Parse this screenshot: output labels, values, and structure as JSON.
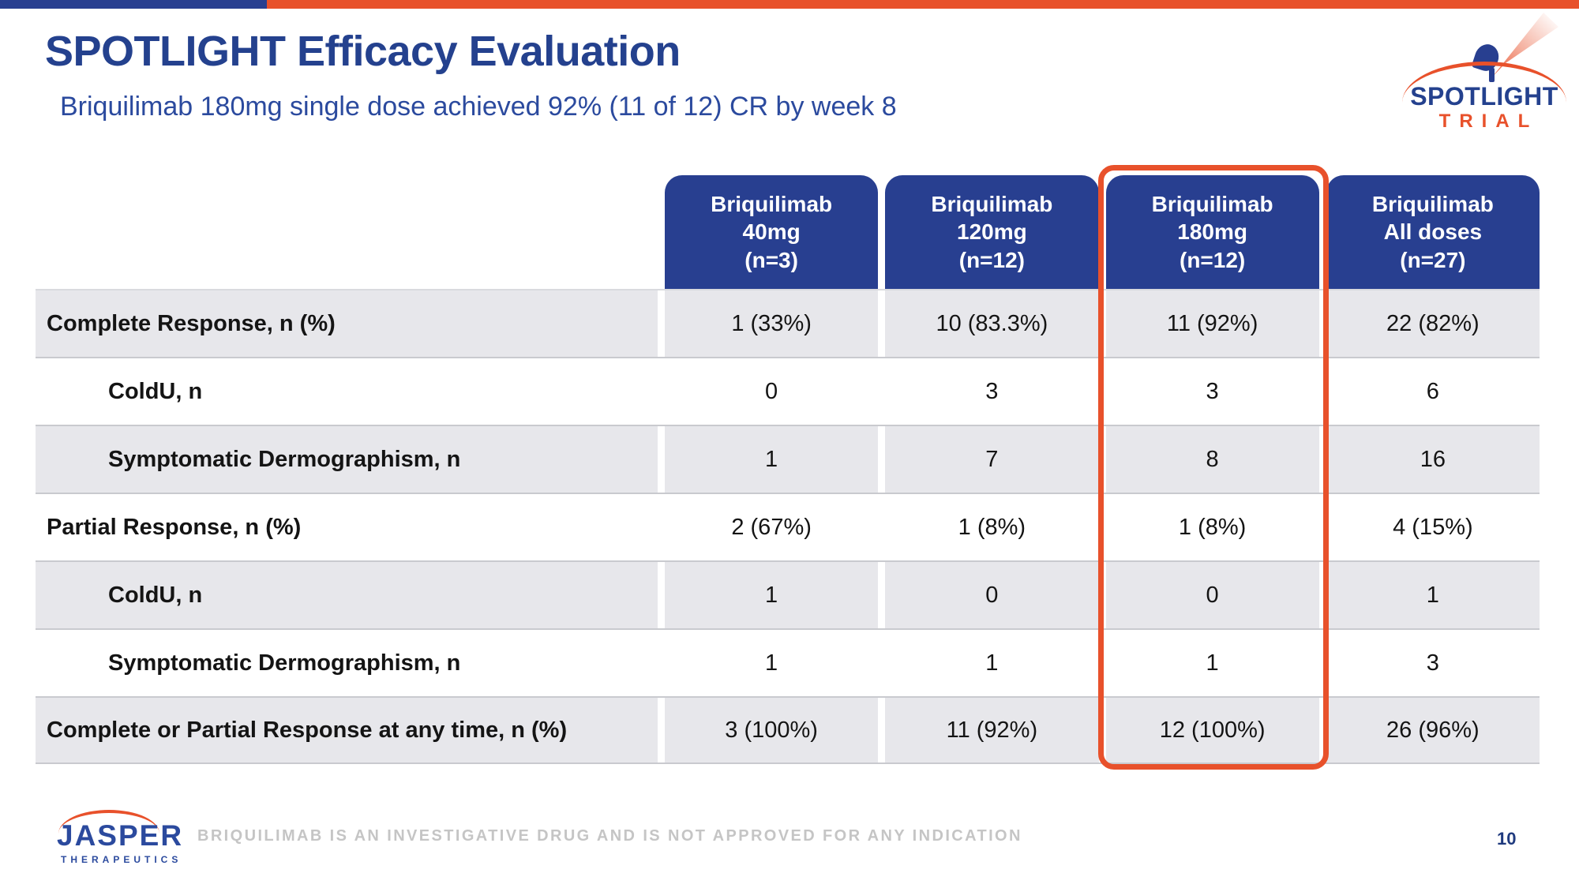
{
  "slide": {
    "title": "SPOTLIGHT Efficacy Evaluation",
    "subtitle": "Briquilimab 180mg single dose achieved 92% (11 of 12) CR by week 8",
    "footer_disclaimer": "BRIQUILIMAB IS AN INVESTIGATIVE DRUG AND IS NOT APPROVED FOR ANY INDICATION",
    "page_number": "10"
  },
  "logos": {
    "spotlight": {
      "line1": "SPOTLIGHT",
      "line2": "TRIAL"
    },
    "jasper": {
      "line1": "JASPER",
      "line2": "THERAPEUTICS"
    }
  },
  "table": {
    "columns": [
      {
        "line1": "Briquilimab",
        "line2": "40mg",
        "line3": "(n=3)",
        "highlighted": false
      },
      {
        "line1": "Briquilimab",
        "line2": "120mg",
        "line3": "(n=12)",
        "highlighted": false
      },
      {
        "line1": "Briquilimab",
        "line2": "180mg",
        "line3": "(n=12)",
        "highlighted": true
      },
      {
        "line1": "Briquilimab",
        "line2": "All doses",
        "line3": "(n=27)",
        "highlighted": false
      }
    ],
    "rows": [
      {
        "label": "Complete Response, n (%)",
        "indent": false,
        "values": [
          "1 (33%)",
          "10 (83.3%)",
          "11 (92%)",
          "22 (82%)"
        ]
      },
      {
        "label": "ColdU, n",
        "indent": true,
        "values": [
          "0",
          "3",
          "3",
          "6"
        ]
      },
      {
        "label": "Symptomatic Dermographism, n",
        "indent": true,
        "values": [
          "1",
          "7",
          "8",
          "16"
        ]
      },
      {
        "label": "Partial Response, n (%)",
        "indent": false,
        "values": [
          "2 (67%)",
          "1 (8%)",
          "1 (8%)",
          "4 (15%)"
        ]
      },
      {
        "label": "ColdU, n",
        "indent": true,
        "values": [
          "1",
          "0",
          "0",
          "1"
        ]
      },
      {
        "label": "Symptomatic Dermographism, n",
        "indent": true,
        "values": [
          "1",
          "1",
          "1",
          "3"
        ]
      },
      {
        "label": "Complete or Partial Response at any time, n (%)",
        "indent": false,
        "values": [
          "3 (100%)",
          "11 (92%)",
          "12 (100%)",
          "26 (96%)"
        ]
      }
    ]
  },
  "colors": {
    "brand_blue": "#283f90",
    "title_blue": "#24418e",
    "subtitle_blue": "#2b4a9e",
    "accent_orange": "#e8512b",
    "row_gray": "#e7e7eb",
    "footer_gray": "#c5c5c5",
    "page_navy": "#1f3a7e"
  }
}
